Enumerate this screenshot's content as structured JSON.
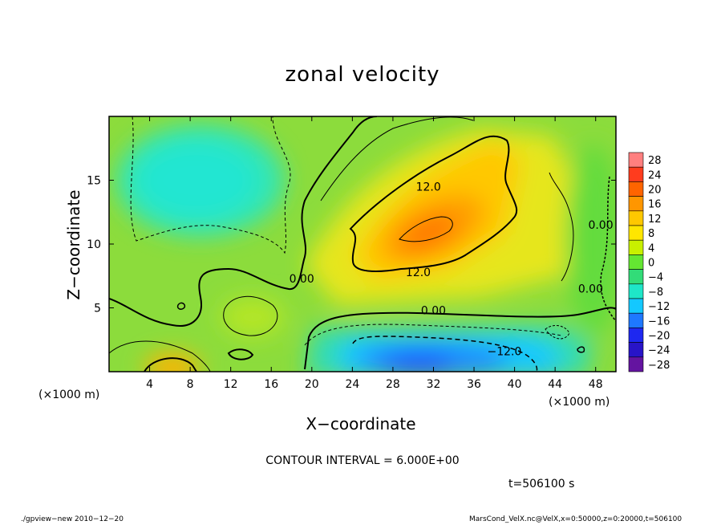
{
  "title": "zonal velocity",
  "xlabel": "X−coordinate",
  "ylabel": "Z−coordinate",
  "x_unit_left": "(×1000 m)",
  "x_unit_right": "(×1000 m)",
  "contour_interval": "CONTOUR INTERVAL = 6.000E+00",
  "time_label": "t=506100 s",
  "footer_left": "./gpview−new   2010−12−20",
  "footer_right": "MarsCond_VelX.nc@VelX,x=0:50000,z=0:20000,t=506100",
  "chart_data": {
    "type": "heatmap",
    "title": "zonal velocity",
    "xlabel": "X−coordinate",
    "ylabel": "Z−coordinate",
    "x_ticks": [
      4,
      8,
      12,
      16,
      20,
      24,
      28,
      32,
      36,
      40,
      44,
      48
    ],
    "y_ticks": [
      5,
      10,
      15
    ],
    "xlim": [
      0,
      50
    ],
    "ylim": [
      0,
      20
    ],
    "colorbar": {
      "labels": [
        "28",
        "24",
        "20",
        "16",
        "12",
        "8",
        "4",
        "0",
        "−4",
        "−8",
        "−12",
        "−16",
        "−20",
        "−24",
        "−28"
      ],
      "values": [
        28,
        24,
        20,
        16,
        12,
        8,
        4,
        0,
        -4,
        -8,
        -12,
        -16,
        -20,
        -24,
        -28
      ],
      "colors": [
        "#ff7f7f",
        "#ff3c1e",
        "#ff6400",
        "#ff9600",
        "#ffc800",
        "#ffe600",
        "#c8f000",
        "#64e632",
        "#32dc78",
        "#1ee6c8",
        "#14c8ff",
        "#1e78ff",
        "#1e28f0",
        "#2814c8",
        "#6414a0"
      ]
    },
    "contour_labels": [
      {
        "text": "12.0",
        "x": 31.5,
        "z": 14.5
      },
      {
        "text": "12.0",
        "x": 30.5,
        "z": 7.8
      },
      {
        "text": "0.00",
        "x": 19.0,
        "z": 7.3
      },
      {
        "text": "0.00",
        "x": 32.0,
        "z": 4.8
      },
      {
        "text": "−12.0",
        "x": 39.0,
        "z": 1.6
      },
      {
        "text": "0.00",
        "x": 48.5,
        "z": 11.5
      },
      {
        "text": "0.00",
        "x": 47.5,
        "z": 6.5
      }
    ],
    "field_features": [
      {
        "kind": "max",
        "x": 32,
        "z": 11,
        "value": 20
      },
      {
        "kind": "min",
        "x": 38,
        "z": 1.5,
        "value": -18
      },
      {
        "kind": "min",
        "x": 9,
        "z": 15,
        "value": -9
      }
    ]
  }
}
